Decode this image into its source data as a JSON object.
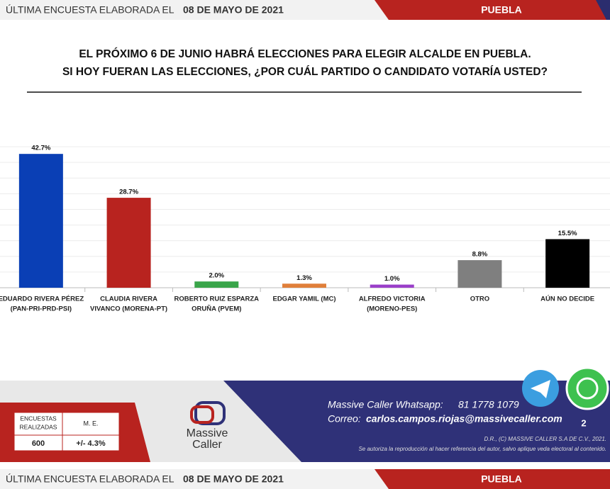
{
  "header": {
    "label": "ÚLTIMA ENCUESTA ELABORADA EL",
    "date": "08 DE MAYO DE 2021",
    "region": "PUEBLA"
  },
  "chart_data": {
    "type": "bar",
    "title": [
      "EL PRÓXIMO 6 DE JUNIO HABRÁ ELECCIONES PARA ELEGIR ALCALDE EN PUEBLA.",
      "SI HOY FUERAN LAS ELECCIONES, ¿POR CUÁL PARTIDO O CANDIDATO VOTARÍA USTED?"
    ],
    "categories": [
      [
        "EDUARDO RIVERA PÉREZ",
        "(PAN-PRI-PRD-PSI)"
      ],
      [
        "CLAUDIA RIVERA",
        "VIVANCO (MORENA-PT)"
      ],
      [
        "ROBERTO RUIZ ESPARZA",
        "ORUÑA (PVEM)"
      ],
      [
        "EDGAR YAMIL (MC)"
      ],
      [
        "ALFREDO VICTORIA",
        "(MORENO-PES)"
      ],
      [
        "OTRO"
      ],
      [
        "AÚN NO DECIDE"
      ]
    ],
    "values": [
      42.7,
      28.7,
      2.0,
      1.3,
      1.0,
      8.8,
      15.5
    ],
    "value_labels": [
      "42.7%",
      "28.7%",
      "2.0%",
      "1.3%",
      "1.0%",
      "8.8%",
      "15.5%"
    ],
    "colors": [
      "#0a3fb5",
      "#b8231f",
      "#3aa54a",
      "#e07f3a",
      "#9a3fc9",
      "#7f7f7f",
      "#000000"
    ],
    "ylim": [
      0,
      45
    ],
    "yticks": [
      0,
      5,
      10,
      15,
      20,
      25,
      30,
      35,
      40,
      45
    ],
    "grid": true
  },
  "footer": {
    "table": {
      "headers": [
        [
          "ENCUESTAS",
          "REALIZADAS"
        ],
        "M. E."
      ],
      "row": [
        "600",
        "+/- 4.3%"
      ]
    },
    "logo": [
      "Massive",
      "Caller"
    ],
    "whatsapp_label": "Massive Caller Whatsapp:",
    "whatsapp": "81 1778 1079",
    "email_label": "Correo:",
    "email": "carlos.campos.riojas@massivecaller.com",
    "page": "2",
    "copyright": "D.R., (C) MASSIVE CALLER S.A DE C.V., 2021.",
    "notice": "Se autoriza la reproducción al hacer referencia del autor, salvo aplique veda electoral al contenido."
  },
  "bottom_bar": {
    "label": "ÚLTIMA ENCUESTA ELABORADA EL",
    "date": "08 DE MAYO DE 2021",
    "region": "PUEBLA"
  }
}
